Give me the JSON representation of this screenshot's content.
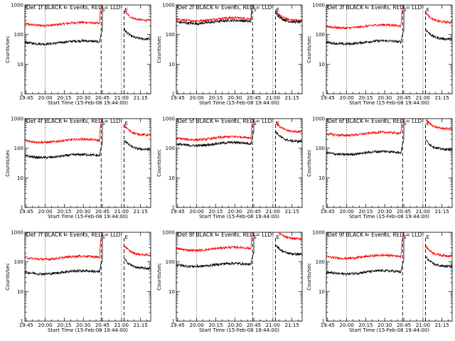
{
  "chart_data": {
    "type": "line",
    "layout": "grid 3x3",
    "colors": {
      "events": "#000000",
      "lld": "#ff0000"
    },
    "x_tick_labels": [
      "19:45",
      "20:00",
      "20:15",
      "20:30",
      "20:45",
      "21:00",
      "21:15"
    ],
    "xlim": [
      "19:44",
      "21:23"
    ],
    "xlabel": "Start Time (15-Feb-08 19:44:00)",
    "ylabel": "Counts/sec",
    "y_scale": "log",
    "ylim": [
      1,
      1000
    ],
    "y_tick_labels": [
      "1",
      "10",
      "100",
      "1000"
    ],
    "markers": [
      {
        "label": "S",
        "time": "20:44"
      },
      {
        "label": "E",
        "time": "21:02"
      }
    ],
    "reference_times": [
      "19:44",
      "20:00",
      "21:00"
    ],
    "gap": [
      "20:45",
      "21:02"
    ],
    "panels": [
      {
        "title": "Det 1f BLACK = Events, RED = LLD",
        "events_level": 55,
        "lld_level": 230,
        "events_after": 70,
        "lld_after": 300,
        "flare": "S"
      },
      {
        "title": "Det 2f BLACK = Events, RED = LLD",
        "events_level": 270,
        "lld_level": 330,
        "events_after": 260,
        "lld_after": 300,
        "flare": "both"
      },
      {
        "title": "Det 3f BLACK = Events, RED = LLD",
        "events_level": 55,
        "lld_level": 190,
        "events_after": 70,
        "lld_after": 260,
        "flare": "S"
      },
      {
        "title": "Det 4f BLACK = Events, RED = LLD",
        "events_level": 55,
        "lld_level": 180,
        "events_after": 90,
        "lld_after": 280,
        "flare": "S"
      },
      {
        "title": "Det 5f BLACK = Events, RED = LLD",
        "events_level": 140,
        "lld_level": 220,
        "events_after": 170,
        "lld_after": 360,
        "flare": "S"
      },
      {
        "title": "Det 6f BLACK = Events, RED = LLD",
        "events_level": 70,
        "lld_level": 310,
        "events_after": 90,
        "lld_after": 450,
        "flare": "S"
      },
      {
        "title": "Det 7f BLACK = Events, RED = LLD",
        "events_level": 45,
        "lld_level": 140,
        "events_after": 60,
        "lld_after": 170,
        "flare": "S"
      },
      {
        "title": "Det 8f BLACK = Events, RED = LLD",
        "events_level": 80,
        "lld_level": 280,
        "events_after": 180,
        "lld_after": 600,
        "flare": "S"
      },
      {
        "title": "Det 9f BLACK = Events, RED = LLD",
        "events_level": 45,
        "lld_level": 150,
        "events_after": 70,
        "lld_after": 160,
        "flare": "S"
      }
    ]
  }
}
